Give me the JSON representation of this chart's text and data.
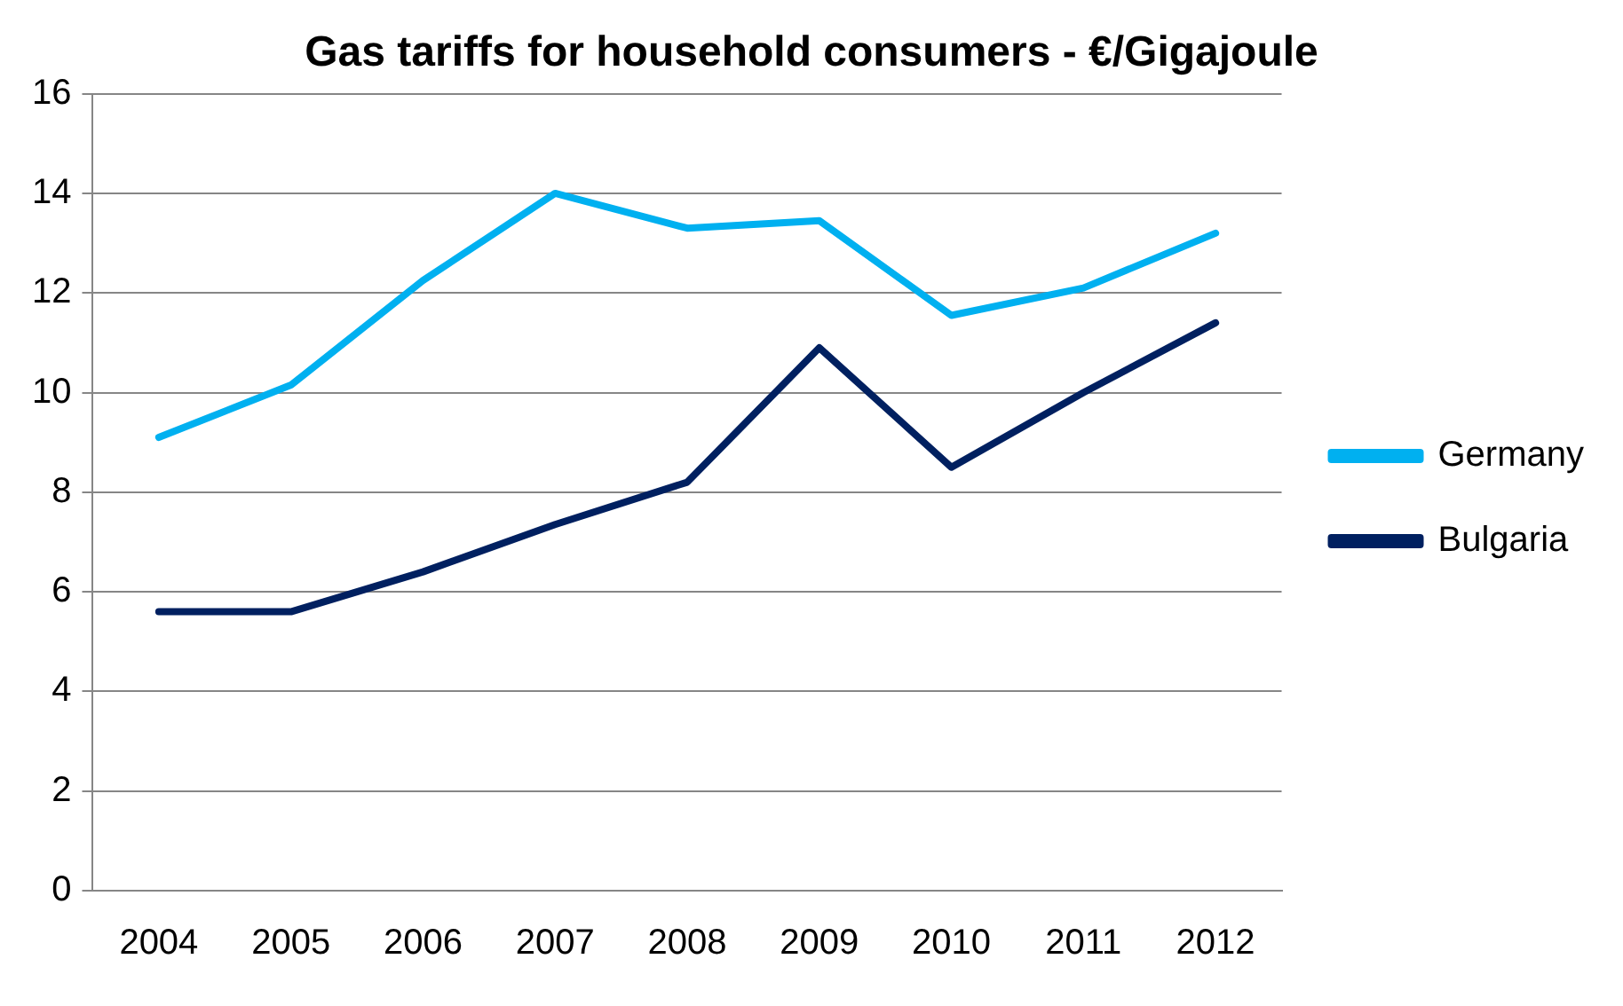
{
  "chart_data": {
    "type": "line",
    "title": "Gas tariffs for household consumers - €/Gigajoule",
    "categories": [
      "2004",
      "2005",
      "2006",
      "2007",
      "2008",
      "2009",
      "2010",
      "2011",
      "2012"
    ],
    "series": [
      {
        "name": "Germany",
        "color": "#00b0f0",
        "values": [
          9.1,
          10.15,
          12.25,
          14.0,
          13.3,
          13.45,
          11.55,
          12.1,
          13.2
        ]
      },
      {
        "name": "Bulgaria",
        "color": "#002060",
        "values": [
          5.6,
          5.6,
          6.4,
          7.35,
          8.2,
          10.9,
          8.5,
          10.0,
          11.4
        ]
      }
    ],
    "ylim": [
      0,
      16
    ],
    "yticks": [
      0,
      2,
      4,
      6,
      8,
      10,
      12,
      14,
      16
    ],
    "grid": "y",
    "legend": "right",
    "marker": "none"
  }
}
